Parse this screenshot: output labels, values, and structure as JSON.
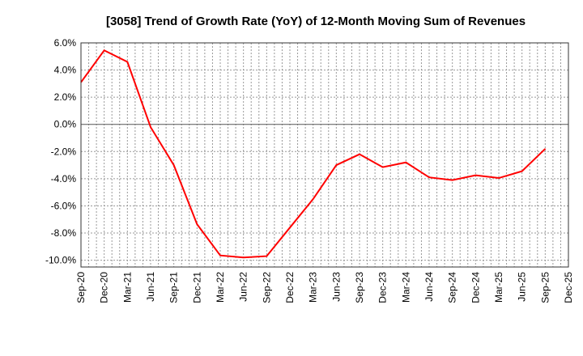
{
  "chart_data": {
    "type": "line",
    "title": "[3058]  Trend of Growth Rate (YoY) of 12-Month Moving Sum of Revenues",
    "xlabel": "",
    "ylabel": "",
    "ylim": [
      -10.5,
      6.0
    ],
    "grid": true,
    "line_color": "#ff0000",
    "y_ticks": [
      6,
      4,
      2,
      0,
      -2,
      -4,
      -6,
      -8,
      -10
    ],
    "y_tick_labels": [
      "6.0%",
      "4.0%",
      "2.0%",
      "0.0%",
      "-2.0%",
      "-4.0%",
      "-6.0%",
      "-8.0%",
      "-10.0%"
    ],
    "x_tick_labels": [
      "Sep-20",
      "Dec-20",
      "Mar-21",
      "Jun-21",
      "Sep-21",
      "Dec-21",
      "Mar-22",
      "Jun-22",
      "Sep-22",
      "Dec-22",
      "Mar-23",
      "Jun-23",
      "Sep-23",
      "Dec-23",
      "Mar-24",
      "Jun-24",
      "Sep-24",
      "Dec-24",
      "Mar-25",
      "Jun-25",
      "Sep-25",
      "Dec-25"
    ],
    "series": [
      {
        "name": "Growth Rate (YoY)",
        "x": [
          "Sep-20",
          "Dec-20",
          "Mar-21",
          "Jun-21",
          "Sep-21",
          "Dec-21",
          "Mar-22",
          "Jun-22",
          "Sep-22",
          "Dec-22",
          "Mar-23",
          "Jun-23",
          "Sep-23",
          "Dec-23",
          "Mar-24",
          "Jun-24",
          "Sep-24",
          "Dec-24",
          "Mar-25",
          "Jun-25",
          "Sep-25"
        ],
        "values": [
          3.1,
          5.45,
          4.6,
          -0.2,
          -3.0,
          -7.35,
          -9.65,
          -9.8,
          -9.7,
          -7.6,
          -5.5,
          -3.0,
          -2.2,
          -3.15,
          -2.8,
          -3.9,
          -4.1,
          -3.75,
          -3.95,
          -3.45,
          -1.8
        ]
      }
    ]
  }
}
